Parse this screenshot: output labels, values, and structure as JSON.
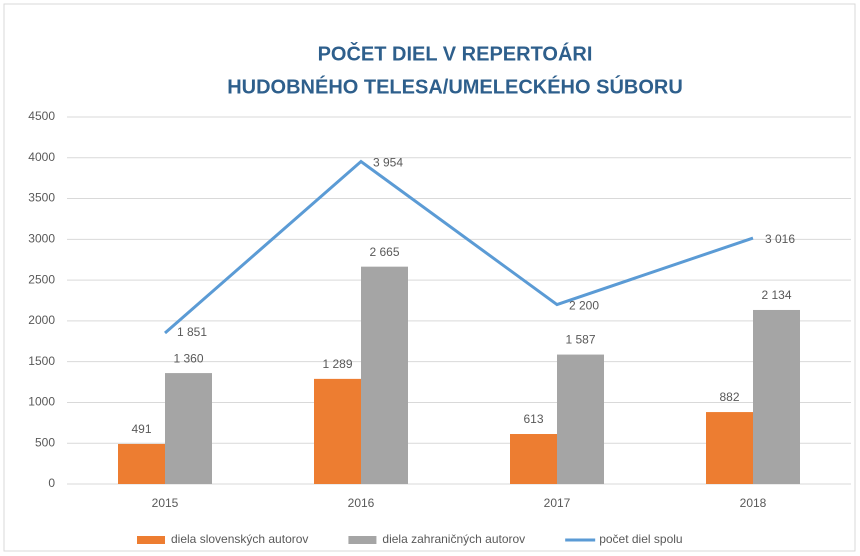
{
  "chart_data": {
    "type": "bar",
    "title": [
      "POČET DIEL V REPERTOÁRI",
      "HUDOBNÉHO TELESA/UMELECKÉHO SÚBORU"
    ],
    "categories": [
      "2015",
      "2016",
      "2017",
      "2018"
    ],
    "series": [
      {
        "name": "diela slovenských autorov",
        "color": "#ed7d31",
        "values": [
          491,
          1289,
          613,
          882
        ],
        "value_labels": [
          "491",
          "1 289",
          "613",
          "882"
        ]
      },
      {
        "name": "diela zahraničných autorov",
        "color": "#a5a5a5",
        "values": [
          1360,
          2665,
          1587,
          2134
        ],
        "value_labels": [
          "1 360",
          "2 665",
          "1 587",
          "2 134"
        ]
      },
      {
        "name": "počet diel spolu",
        "color": "#5b9bd5",
        "type": "line",
        "values": [
          1851,
          3954,
          2200,
          3016
        ],
        "value_labels": [
          "1 851",
          "3 954",
          "2 200",
          "3 016"
        ]
      }
    ],
    "ylim": [
      0,
      4500
    ],
    "yticks": [
      0,
      500,
      1000,
      1500,
      2000,
      2500,
      3000,
      3500,
      4000,
      4500
    ],
    "grid": true,
    "legend": "bottom"
  }
}
